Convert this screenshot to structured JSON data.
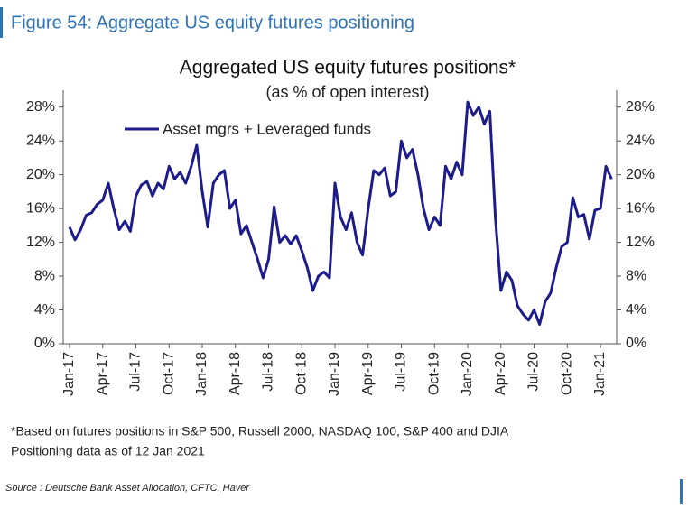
{
  "figure_title": "Figure 54: Aggregate US equity futures positioning",
  "chart_data": {
    "type": "line",
    "title": "Aggregated US equity futures positions*",
    "subtitle": "(as % of open interest)",
    "categories": [
      "Jan-17",
      null,
      null,
      null,
      null,
      null,
      "Apr-17",
      null,
      null,
      null,
      null,
      null,
      "Jul-17",
      null,
      null,
      null,
      null,
      null,
      "Oct-17",
      null,
      null,
      null,
      null,
      null,
      "Jan-18",
      null,
      null,
      null,
      null,
      null,
      "Apr-18",
      null,
      null,
      null,
      null,
      null,
      "Jul-18",
      null,
      null,
      null,
      null,
      null,
      "Oct-18",
      null,
      null,
      null,
      null,
      null,
      "Jan-19",
      null,
      null,
      null,
      null,
      null,
      "Apr-19",
      null,
      null,
      null,
      null,
      null,
      "Jul-19",
      null,
      null,
      null,
      null,
      null,
      "Oct-19",
      null,
      null,
      null,
      null,
      null,
      "Jan-20",
      null,
      null,
      null,
      null,
      null,
      "Apr-20",
      null,
      null,
      null,
      null,
      null,
      "Jul-20",
      null,
      null,
      null,
      null,
      null,
      "Oct-20",
      null,
      null,
      null,
      null,
      null,
      "Jan-21",
      null,
      null
    ],
    "series": [
      {
        "name": "Asset mgrs + Leveraged funds",
        "color": "#1c1c8a",
        "values": [
          13.8,
          12.3,
          13.5,
          15.2,
          15.5,
          16.5,
          17,
          19,
          16,
          13.5,
          14.5,
          13.3,
          17.5,
          18.8,
          19.2,
          17.5,
          19,
          18.3,
          21,
          19.5,
          20.3,
          19,
          21,
          23.5,
          18,
          13.8,
          19,
          20,
          20.5,
          16,
          17,
          13,
          14,
          12,
          10,
          7.8,
          10,
          16.2,
          12,
          12.8,
          11.8,
          12.8,
          11,
          9,
          6.3,
          8,
          8.5,
          7.8,
          19,
          15,
          13.5,
          15.5,
          12,
          10.5,
          16,
          20.5,
          20,
          20.8,
          17.5,
          18,
          24,
          22,
          23,
          20,
          16,
          13.5,
          15,
          14,
          21,
          19.5,
          21.5,
          20,
          28.6,
          27,
          28,
          26,
          27.5,
          15,
          6.3,
          8.5,
          7.5,
          4.5,
          3.5,
          2.8,
          4,
          2.3,
          5,
          6,
          9,
          11.5,
          12,
          17.3,
          15,
          15.3,
          12.4,
          15.8,
          16,
          21,
          19.5
        ]
      }
    ],
    "ylim": [
      0,
      30
    ],
    "yticks": [
      {
        "value": 0,
        "label": "0%"
      },
      {
        "value": 4,
        "label": "4%"
      },
      {
        "value": 8,
        "label": "8%"
      },
      {
        "value": 12,
        "label": "12%"
      },
      {
        "value": 16,
        "label": "16%"
      },
      {
        "value": 20,
        "label": "20%"
      },
      {
        "value": 24,
        "label": "24%"
      },
      {
        "value": 28,
        "label": "28%"
      }
    ],
    "y2lim": [
      0,
      30
    ],
    "y2ticks": [
      {
        "value": 0,
        "label": "0%"
      },
      {
        "value": 4,
        "label": "4%"
      },
      {
        "value": 8,
        "label": "8%"
      },
      {
        "value": 12,
        "label": "12%"
      },
      {
        "value": 16,
        "label": "16%"
      },
      {
        "value": 20,
        "label": "20%"
      },
      {
        "value": 24,
        "label": "24%"
      },
      {
        "value": 28,
        "label": "28%"
      }
    ],
    "grid": false
  },
  "footnotes": [
    "*Based on futures positions in S&P 500, Russell 2000, NASDAQ 100, S&P 400 and DJIA",
    "Positioning data as of 12 Jan 2021"
  ],
  "source": "Source : Deutsche Bank Asset Allocation, CFTC, Haver"
}
